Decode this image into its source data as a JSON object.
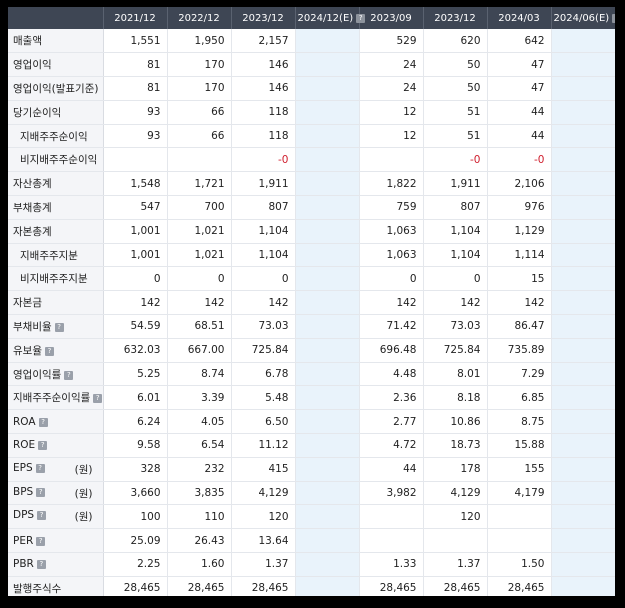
{
  "header": {
    "columns": [
      "2021/12",
      "2022/12",
      "2023/12",
      "2024/12(E)",
      "2023/09",
      "2023/12",
      "2024/03",
      "2024/06(E)"
    ],
    "estimate_flags": [
      false,
      false,
      false,
      true,
      false,
      false,
      false,
      true
    ]
  },
  "rows": [
    {
      "label": "매출액",
      "indent": false,
      "help": false,
      "unit": "",
      "red_top": false,
      "values": [
        "1,551",
        "1,950",
        "2,157",
        "",
        "529",
        "620",
        "642",
        ""
      ]
    },
    {
      "label": "영업이익",
      "indent": false,
      "help": false,
      "unit": "",
      "red_top": true,
      "values": [
        "81",
        "170",
        "146",
        "",
        "24",
        "50",
        "47",
        ""
      ]
    },
    {
      "label": "영업이익(발표기준)",
      "indent": false,
      "help": false,
      "unit": "",
      "red_top": true,
      "values": [
        "81",
        "170",
        "146",
        "",
        "24",
        "50",
        "47",
        ""
      ]
    },
    {
      "label": "당기순이익",
      "indent": false,
      "help": false,
      "unit": "",
      "red_top": false,
      "values": [
        "93",
        "66",
        "118",
        "",
        "12",
        "51",
        "44",
        ""
      ]
    },
    {
      "label": "지배주주순이익",
      "indent": true,
      "help": false,
      "unit": "",
      "red_top": true,
      "values": [
        "93",
        "66",
        "118",
        "",
        "12",
        "51",
        "44",
        ""
      ]
    },
    {
      "label": "비지배주주순이익",
      "indent": true,
      "help": false,
      "unit": "",
      "red_top": false,
      "values": [
        "",
        "",
        "-0",
        "",
        "",
        "-0",
        "-0",
        ""
      ]
    },
    {
      "label": "자산총계",
      "indent": false,
      "help": false,
      "unit": "",
      "red_top": false,
      "values": [
        "1,548",
        "1,721",
        "1,911",
        "",
        "1,822",
        "1,911",
        "2,106",
        ""
      ]
    },
    {
      "label": "부채총계",
      "indent": false,
      "help": false,
      "unit": "",
      "red_top": false,
      "values": [
        "547",
        "700",
        "807",
        "",
        "759",
        "807",
        "976",
        ""
      ]
    },
    {
      "label": "자본총계",
      "indent": false,
      "help": false,
      "unit": "",
      "red_top": false,
      "values": [
        "1,001",
        "1,021",
        "1,104",
        "",
        "1,063",
        "1,104",
        "1,129",
        ""
      ]
    },
    {
      "label": "지배주주지분",
      "indent": true,
      "help": false,
      "unit": "",
      "red_top": false,
      "values": [
        "1,001",
        "1,021",
        "1,104",
        "",
        "1,063",
        "1,104",
        "1,114",
        ""
      ]
    },
    {
      "label": "비지배주주지분",
      "indent": true,
      "help": false,
      "unit": "",
      "red_top": false,
      "values": [
        "0",
        "0",
        "0",
        "",
        "0",
        "0",
        "15",
        ""
      ]
    },
    {
      "label": "자본금",
      "indent": false,
      "help": false,
      "unit": "",
      "red_top": false,
      "values": [
        "142",
        "142",
        "142",
        "",
        "142",
        "142",
        "142",
        ""
      ]
    },
    {
      "label": "부채비율",
      "indent": false,
      "help": true,
      "unit": "",
      "red_top": false,
      "values": [
        "54.59",
        "68.51",
        "73.03",
        "",
        "71.42",
        "73.03",
        "86.47",
        ""
      ]
    },
    {
      "label": "유보율",
      "indent": false,
      "help": true,
      "unit": "",
      "red_top": true,
      "values": [
        "632.03",
        "667.00",
        "725.84",
        "",
        "696.48",
        "725.84",
        "735.89",
        ""
      ]
    },
    {
      "label": "영업이익률",
      "indent": false,
      "help": true,
      "unit": "",
      "red_top": true,
      "values": [
        "5.25",
        "8.74",
        "6.78",
        "",
        "4.48",
        "8.01",
        "7.29",
        ""
      ]
    },
    {
      "label": "지배주주순이익률",
      "indent": false,
      "help": true,
      "unit": "",
      "red_top": false,
      "values": [
        "6.01",
        "3.39",
        "5.48",
        "",
        "2.36",
        "8.18",
        "6.85",
        ""
      ]
    },
    {
      "label": "ROA",
      "indent": false,
      "help": true,
      "unit": "",
      "red_top": false,
      "values": [
        "6.24",
        "4.05",
        "6.50",
        "",
        "2.77",
        "10.86",
        "8.75",
        ""
      ]
    },
    {
      "label": "ROE",
      "indent": false,
      "help": true,
      "unit": "",
      "red_top": false,
      "values": [
        "9.58",
        "6.54",
        "11.12",
        "",
        "4.72",
        "18.73",
        "15.88",
        ""
      ]
    },
    {
      "label": "EPS",
      "indent": false,
      "help": true,
      "unit": "(원)",
      "red_top": true,
      "values": [
        "328",
        "232",
        "415",
        "",
        "44",
        "178",
        "155",
        ""
      ]
    },
    {
      "label": "BPS",
      "indent": false,
      "help": true,
      "unit": "(원)",
      "red_top": false,
      "values": [
        "3,660",
        "3,835",
        "4,129",
        "",
        "3,982",
        "4,129",
        "4,179",
        ""
      ]
    },
    {
      "label": "DPS",
      "indent": false,
      "help": true,
      "unit": "(원)",
      "red_top": false,
      "values": [
        "100",
        "110",
        "120",
        "",
        "",
        "120",
        "",
        ""
      ]
    },
    {
      "label": "PER",
      "indent": false,
      "help": true,
      "unit": "",
      "red_top": false,
      "values": [
        "25.09",
        "26.43",
        "13.64",
        "",
        "",
        "",
        "",
        ""
      ]
    },
    {
      "label": "PBR",
      "indent": false,
      "help": true,
      "unit": "",
      "red_top": false,
      "values": [
        "2.25",
        "1.60",
        "1.37",
        "",
        "1.33",
        "1.37",
        "1.50",
        ""
      ]
    },
    {
      "label": "발행주식수",
      "indent": false,
      "help": false,
      "unit": "",
      "red_top": false,
      "values": [
        "28,465",
        "28,465",
        "28,465",
        "",
        "28,465",
        "28,465",
        "28,465",
        ""
      ]
    }
  ],
  "help_icon": "question-mark-icon",
  "colors": {
    "header_bg": "#3e4654",
    "estimate_col_bg": "#e9f3fb",
    "negative": "#d0202f",
    "divider": "#c9202f"
  }
}
